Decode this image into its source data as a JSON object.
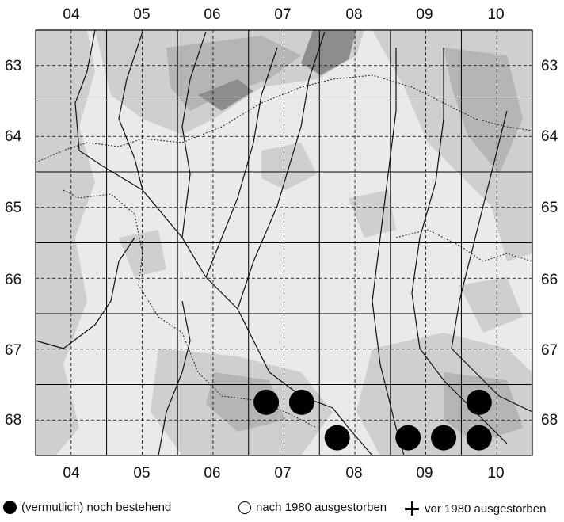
{
  "map": {
    "columns": [
      "04",
      "05",
      "06",
      "07",
      "08",
      "09",
      "10"
    ],
    "rows": [
      "63",
      "64",
      "65",
      "66",
      "67",
      "68"
    ],
    "occurrences": [
      {
        "col": "07",
        "row": "68",
        "quadrant": "NW",
        "status": "extant"
      },
      {
        "col": "07",
        "row": "68",
        "quadrant": "NE",
        "status": "extant"
      },
      {
        "col": "08",
        "row": "68",
        "quadrant": "SW",
        "status": "extant"
      },
      {
        "col": "09",
        "row": "68",
        "quadrant": "SW",
        "status": "extant"
      },
      {
        "col": "09",
        "row": "68",
        "quadrant": "SE",
        "status": "extant"
      },
      {
        "col": "10",
        "row": "68",
        "quadrant": "NW",
        "status": "extant"
      },
      {
        "col": "10",
        "row": "68",
        "quadrant": "SW",
        "status": "extant"
      }
    ],
    "colors": {
      "background": "#eaeaea",
      "relief_light": "#cfcfcf",
      "relief_mid": "#b5b5b5",
      "relief_dark": "#8d8d8d",
      "grid": "#000000",
      "dot": "#000000"
    }
  },
  "legend": {
    "extant": "(vermutlich) noch bestehend",
    "extinct_after_1980": "nach 1980 ausgestorben",
    "extinct_before_1980": "vor 1980 ausgestorben"
  }
}
